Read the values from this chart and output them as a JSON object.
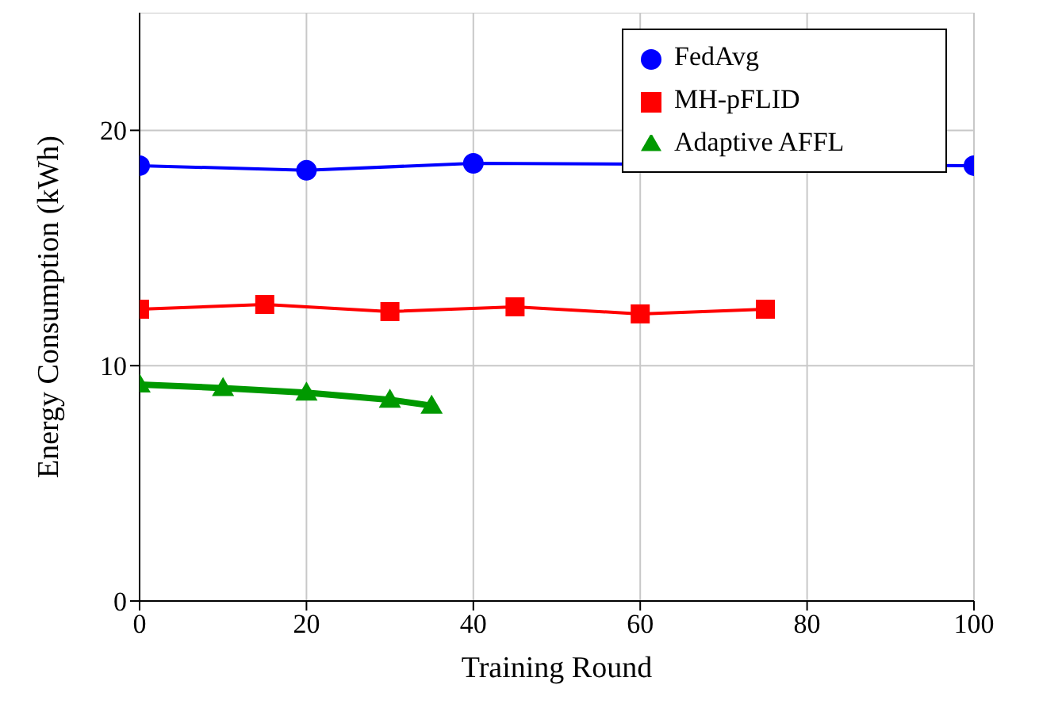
{
  "chart_data": {
    "type": "line",
    "xlabel": "Training Round",
    "ylabel": "Energy Consumption (kWh)",
    "series": [
      {
        "name": "FedAvg",
        "color": "#0000ff",
        "marker": "circle",
        "x": [
          0,
          20,
          40,
          60,
          80,
          100
        ],
        "values": [
          18.5,
          18.3,
          18.6,
          null,
          null,
          18.5
        ]
      },
      {
        "name": "MH-pFLID",
        "color": "#ff0000",
        "marker": "square",
        "x": [
          0,
          15,
          30,
          45,
          60,
          75
        ],
        "values": [
          12.4,
          12.6,
          12.3,
          12.5,
          12.2,
          12.4
        ]
      },
      {
        "name": "Adaptive AFFL",
        "color": "#009900",
        "marker": "triangle",
        "x": [
          0,
          10,
          20,
          30,
          35
        ],
        "values": [
          9.2,
          9.05,
          8.85,
          8.55,
          8.3
        ]
      }
    ],
    "xlim": [
      0,
      100
    ],
    "xticks": [
      0,
      20,
      40,
      60,
      80,
      100
    ],
    "ylim": [
      0,
      25
    ],
    "yticks": [
      0,
      10,
      20
    ],
    "grid": true,
    "legend": "top right"
  }
}
